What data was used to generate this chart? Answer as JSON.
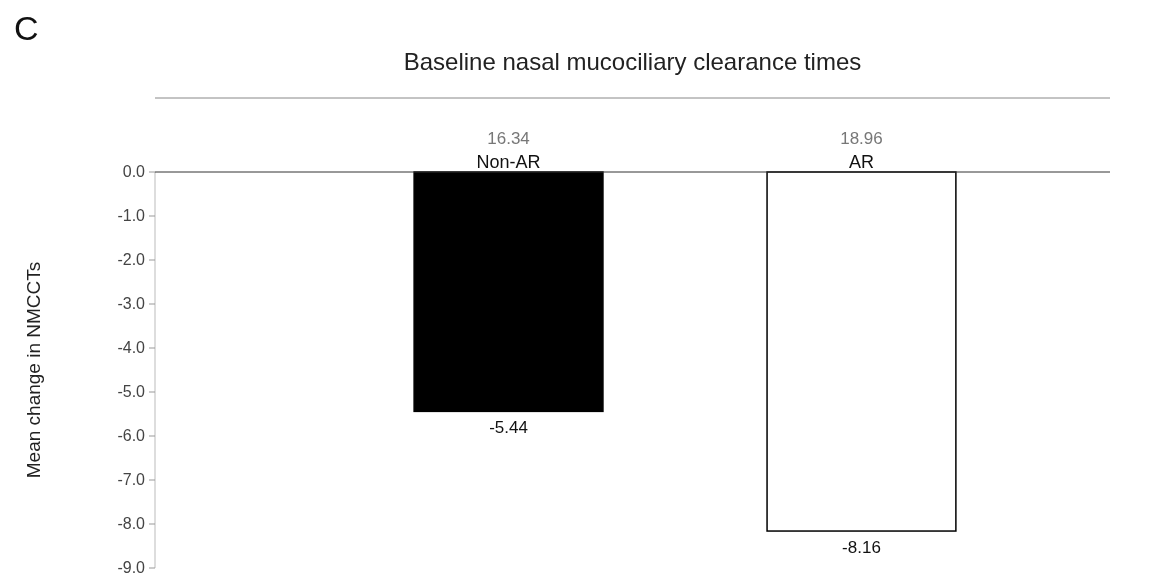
{
  "chart_data": {
    "type": "bar",
    "title": "Baseline nasal mucociliary clearance times",
    "ylabel": "Mean change in NMCCTs",
    "categories": [
      "Non-AR",
      "AR"
    ],
    "values": [
      -5.44,
      -8.16
    ],
    "colors": [
      "#000000",
      "#ffffff"
    ],
    "ylim": [
      -9,
      0
    ],
    "yticks": [
      {
        "value": 0,
        "label": "0.0"
      },
      {
        "value": -1,
        "label": "-1.0"
      },
      {
        "value": -2,
        "label": "-2.0"
      },
      {
        "value": -3,
        "label": "-3.0"
      },
      {
        "value": -4,
        "label": "-4.0"
      },
      {
        "value": -5,
        "label": "-5.0"
      },
      {
        "value": -6,
        "label": "-6.0"
      },
      {
        "value": -7,
        "label": "-7.0"
      },
      {
        "value": -8,
        "label": "-8.0"
      },
      {
        "value": -9,
        "label": "-9.0"
      }
    ],
    "data_labels": true,
    "annotations": [
      "C",
      "16.34",
      "18.96"
    ]
  }
}
